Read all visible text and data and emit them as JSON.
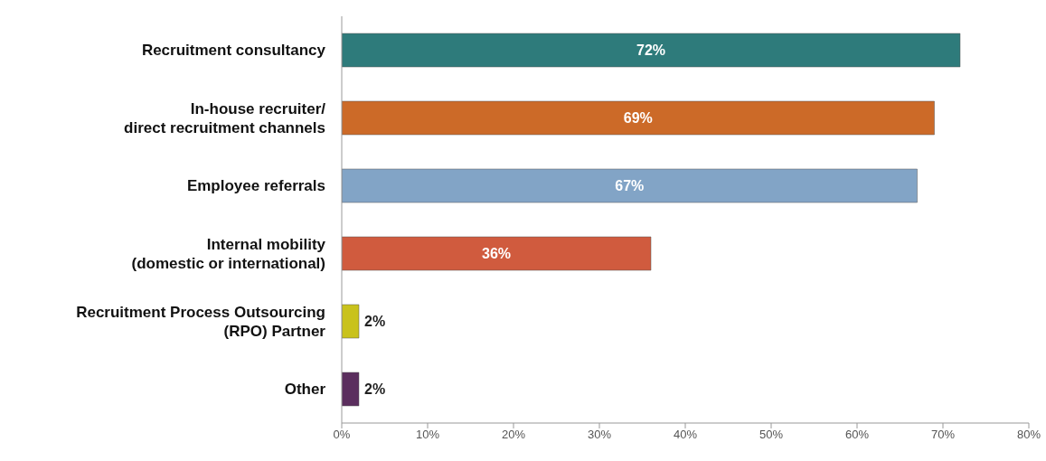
{
  "chart_data": {
    "type": "bar",
    "orientation": "horizontal",
    "categories": [
      "Recruitment consultancy",
      "In-house recruiter/\ndirect recruitment channels",
      "Employee referrals",
      "Internal mobility\n(domestic or international)",
      "Recruitment Process Outsourcing\n(RPO) Partner",
      "Other"
    ],
    "values": [
      72,
      69,
      67,
      36,
      2,
      2
    ],
    "colors": [
      "#2e7b7b",
      "#cc6a28",
      "#82a4c6",
      "#d05b3e",
      "#c9c21c",
      "#5b2e5e"
    ],
    "value_labels": [
      "72%",
      "69%",
      "67%",
      "36%",
      "2%",
      "2%"
    ],
    "xlim": [
      0,
      80
    ],
    "xticks": [
      {
        "value": 0,
        "label": "0%"
      },
      {
        "value": 10,
        "label": "10%"
      },
      {
        "value": 20,
        "label": "20%"
      },
      {
        "value": 30,
        "label": "30%"
      },
      {
        "value": 40,
        "label": "40%"
      },
      {
        "value": 50,
        "label": "50%"
      },
      {
        "value": 60,
        "label": "60%"
      },
      {
        "value": 70,
        "label": "70%"
      },
      {
        "value": 80,
        "label": "80%"
      }
    ],
    "grid": false,
    "legend": false
  }
}
